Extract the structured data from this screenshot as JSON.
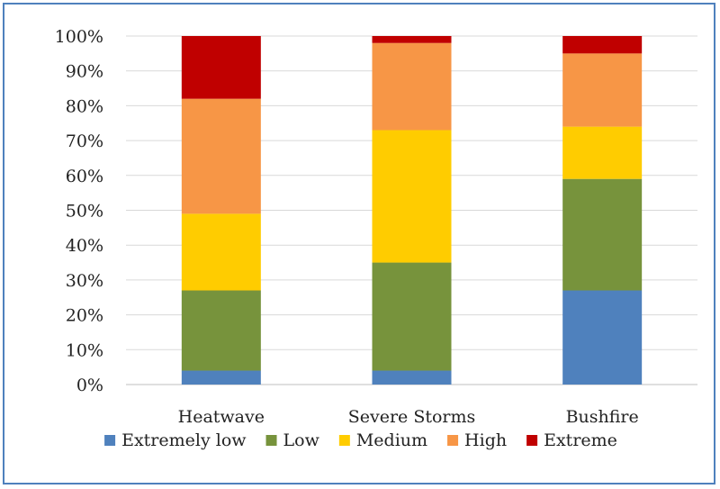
{
  "chart_data": {
    "type": "bar",
    "stacked": true,
    "percent": true,
    "title": "",
    "xlabel": "",
    "ylabel": "",
    "ylim": [
      0,
      100
    ],
    "yticks": [
      "0%",
      "10%",
      "20%",
      "30%",
      "40%",
      "50%",
      "60%",
      "70%",
      "80%",
      "90%",
      "100%"
    ],
    "grid": true,
    "legend_position": "bottom",
    "categories": [
      "Heatwave",
      "Severe Storms",
      "Bushfire"
    ],
    "series": [
      {
        "name": "Extremely low",
        "color": "#4F81BD",
        "values": [
          4,
          4,
          27
        ]
      },
      {
        "name": "Low",
        "color": "#77933C",
        "values": [
          23,
          31,
          32
        ]
      },
      {
        "name": "Medium",
        "color": "#FFCC00",
        "values": [
          22,
          38,
          15
        ]
      },
      {
        "name": "High",
        "color": "#F79646",
        "values": [
          33,
          25,
          21
        ]
      },
      {
        "name": "Extreme",
        "color": "#C00000",
        "values": [
          18,
          2,
          5
        ]
      }
    ]
  }
}
